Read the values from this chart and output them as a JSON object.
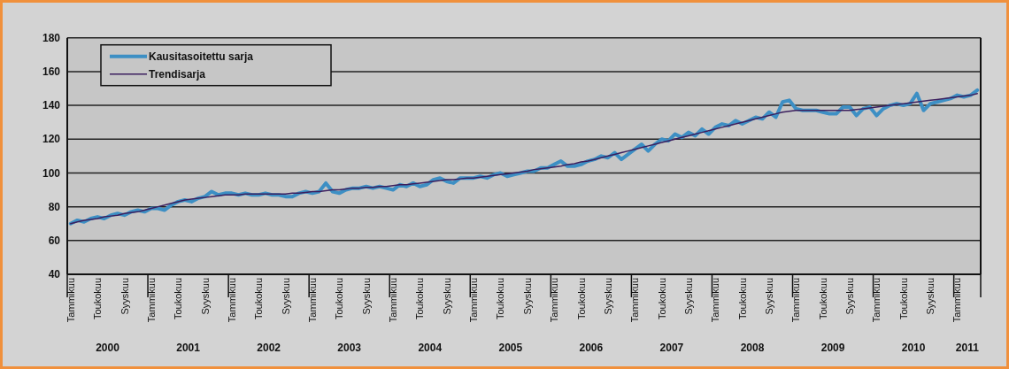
{
  "chart_data": {
    "type": "line",
    "categories": [
      "Tammikuu",
      null,
      null,
      null,
      "Toukokuu",
      null,
      null,
      null,
      "Syyskuu",
      null,
      null,
      null,
      "Tammikuu",
      null,
      null,
      null,
      "Toukokuu",
      null,
      null,
      null,
      "Syyskuu",
      null,
      null,
      null,
      "Tammikuu",
      null,
      null,
      null,
      "Toukokuu",
      null,
      null,
      null,
      "Syyskuu",
      null,
      null,
      null,
      "Tammikuu",
      null,
      null,
      null,
      "Toukokuu",
      null,
      null,
      null,
      "Syyskuu",
      null,
      null,
      null,
      "Tammikuu",
      null,
      null,
      null,
      "Toukokuu",
      null,
      null,
      null,
      "Syyskuu",
      null,
      null,
      null,
      "Tammikuu",
      null,
      null,
      null,
      "Toukokuu",
      null,
      null,
      null,
      "Syyskuu",
      null,
      null,
      null,
      "Tammikuu",
      null,
      null,
      null,
      "Toukokuu",
      null,
      null,
      null,
      "Syyskuu",
      null,
      null,
      null,
      "Tammikuu",
      null,
      null,
      null,
      "Toukokuu",
      null,
      null,
      null,
      "Syyskuu",
      null,
      null,
      null,
      "Tammikuu",
      null,
      null,
      null,
      "Toukokuu",
      null,
      null,
      null,
      "Syyskuu",
      null,
      null,
      null,
      "Tammikuu",
      null,
      null,
      null,
      "Toukokuu",
      null,
      null,
      null,
      "Syyskuu",
      null,
      null,
      null,
      "Tammikuu",
      null,
      null,
      null,
      "Toukokuu",
      null,
      null,
      null,
      "Syyskuu",
      null,
      null,
      null,
      "Tammikuu",
      null,
      null,
      null
    ],
    "series": [
      {
        "name": "Kausitasoitettu sarja",
        "color": "#3d8fc4",
        "values": [
          70,
          72,
          71,
          73,
          74,
          73,
          75,
          76,
          75,
          77,
          78,
          77,
          79,
          79,
          78,
          81,
          83,
          84,
          83,
          85,
          86,
          89,
          87,
          88,
          88,
          87,
          88,
          87,
          87,
          88,
          87,
          87,
          86,
          86,
          88,
          89,
          88,
          89,
          94,
          89,
          88,
          90,
          91,
          91,
          92,
          91,
          92,
          91,
          90,
          93,
          92,
          94,
          92,
          93,
          96,
          97,
          95,
          94,
          97,
          97,
          97,
          98,
          97,
          99,
          100,
          98,
          99,
          100,
          101,
          101,
          103,
          103,
          105,
          107,
          104,
          104,
          105,
          107,
          108,
          110,
          109,
          112,
          108,
          111,
          114,
          117,
          113,
          117,
          120,
          119,
          123,
          121,
          124,
          122,
          126,
          123,
          127,
          129,
          128,
          131,
          129,
          131,
          133,
          132,
          136,
          133,
          142,
          143,
          138,
          137,
          137,
          137,
          136,
          135,
          135,
          139,
          139,
          134,
          138,
          139,
          134,
          138,
          140,
          141,
          140,
          141,
          147,
          137,
          141,
          142,
          143,
          144,
          146,
          145,
          146,
          149
        ]
      },
      {
        "name": "Trendisarja",
        "color": "#3b1f5e",
        "values": [
          70,
          71,
          72,
          72.5,
          73,
          74,
          74.5,
          75,
          76,
          76.5,
          77,
          78,
          79,
          80,
          81,
          82,
          83,
          84,
          84.5,
          85,
          85.5,
          86,
          86.5,
          87,
          87,
          87,
          87.5,
          87.5,
          87.5,
          87.5,
          87.5,
          87.5,
          87.5,
          88,
          88,
          88.5,
          89,
          89,
          89.5,
          90,
          90,
          90.5,
          91,
          91,
          91.5,
          91.5,
          92,
          92,
          92.5,
          93,
          93,
          93.5,
          94,
          94.5,
          95,
          95.5,
          96,
          96,
          96.5,
          97,
          97,
          97.5,
          98,
          98.5,
          99,
          99.5,
          100,
          100.5,
          101,
          102,
          102.5,
          103,
          103.5,
          104,
          105,
          105.5,
          106.5,
          107,
          108,
          109,
          110,
          111,
          112,
          113,
          114,
          115,
          116,
          117,
          118,
          119,
          120,
          121,
          122,
          123,
          124,
          125,
          126,
          127,
          128,
          129,
          130,
          131,
          132,
          133,
          134,
          135,
          136,
          136.5,
          137,
          137,
          137,
          137,
          137,
          137,
          137,
          137,
          137,
          137.5,
          138,
          138.5,
          139,
          139.5,
          140,
          140.5,
          141,
          141.5,
          142,
          142.5,
          143,
          143.5,
          144,
          144.5,
          145,
          145.5,
          146,
          147
        ]
      }
    ],
    "ylim": [
      40,
      180
    ],
    "yticks": [
      40,
      60,
      80,
      100,
      120,
      140,
      160,
      180
    ],
    "grid": "y",
    "legend": "top left",
    "marker": "none",
    "line_style": "solid",
    "annotations": [
      "2000",
      "2001",
      "2002",
      "2003",
      "2004",
      "2005",
      "2006",
      "2007",
      "2008",
      "2009",
      "2010",
      "2011"
    ]
  }
}
